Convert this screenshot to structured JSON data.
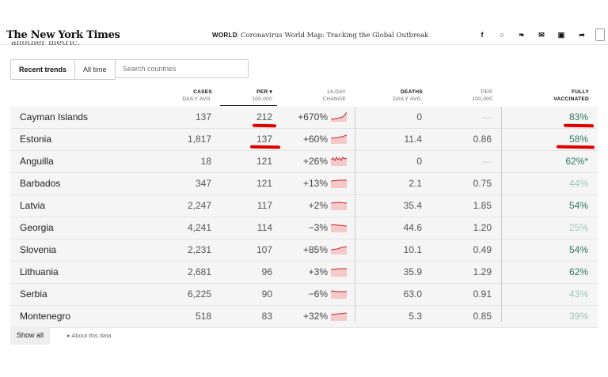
{
  "header": {
    "logo": "The New York Times",
    "section": "WORLD",
    "headline": "Coronavirus World Map: Tracking the Global Outbreak",
    "clipped_text": "another metric."
  },
  "controls": {
    "tabs": [
      "Recent trends",
      "All time"
    ],
    "search_placeholder": "Search countries"
  },
  "columns": {
    "cases": [
      "CASES",
      "DAILY AVG."
    ],
    "per": [
      "PER ▾",
      "100,000"
    ],
    "change": [
      "14-DAY",
      "CHANGE"
    ],
    "deaths": [
      "DEATHS",
      "DAILY AVG."
    ],
    "dper": [
      "PER",
      "100,000"
    ],
    "vacc": [
      "FULLY",
      "VACCINATED"
    ]
  },
  "rows": [
    {
      "name": "Cayman Islands",
      "cases": "137",
      "per": "212",
      "change": "+670%",
      "deaths": "0",
      "dper": "—",
      "vacc": "83%"
    },
    {
      "name": "Estonia",
      "cases": "1,817",
      "per": "137",
      "change": "+60%",
      "deaths": "11.4",
      "dper": "0.86",
      "vacc": "58%"
    },
    {
      "name": "Anguilla",
      "cases": "18",
      "per": "121",
      "change": "+26%",
      "deaths": "0",
      "dper": "—",
      "vacc": "62%*"
    },
    {
      "name": "Barbados",
      "cases": "347",
      "per": "121",
      "change": "+13%",
      "deaths": "2.1",
      "dper": "0.75",
      "vacc": "44%"
    },
    {
      "name": "Latvia",
      "cases": "2,247",
      "per": "117",
      "change": "+2%",
      "deaths": "35.4",
      "dper": "1.85",
      "vacc": "54%"
    },
    {
      "name": "Georgia",
      "cases": "4,241",
      "per": "114",
      "change": "−3%",
      "deaths": "44.6",
      "dper": "1.20",
      "vacc": "25%"
    },
    {
      "name": "Slovenia",
      "cases": "2,231",
      "per": "107",
      "change": "+85%",
      "deaths": "10.1",
      "dper": "0.49",
      "vacc": "54%"
    },
    {
      "name": "Lithuania",
      "cases": "2,681",
      "per": "96",
      "change": "+3%",
      "deaths": "35.9",
      "dper": "1.29",
      "vacc": "62%"
    },
    {
      "name": "Serbia",
      "cases": "6,225",
      "per": "90",
      "change": "−6%",
      "deaths": "63.0",
      "dper": "0.91",
      "vacc": "43%"
    },
    {
      "name": "Montenegro",
      "cases": "518",
      "per": "83",
      "change": "+32%",
      "deaths": "5.3",
      "dper": "0.85",
      "vacc": "39%"
    }
  ],
  "footer": {
    "show_all": "Show all",
    "about": "▸  About this data"
  },
  "colors": {
    "vacc_dark": "#2f7a5a",
    "vacc_light": "#9ccab3",
    "trend_red": "#c62828",
    "trend_fill": "#f4c9c9",
    "highlight_mark": "#e00000"
  }
}
